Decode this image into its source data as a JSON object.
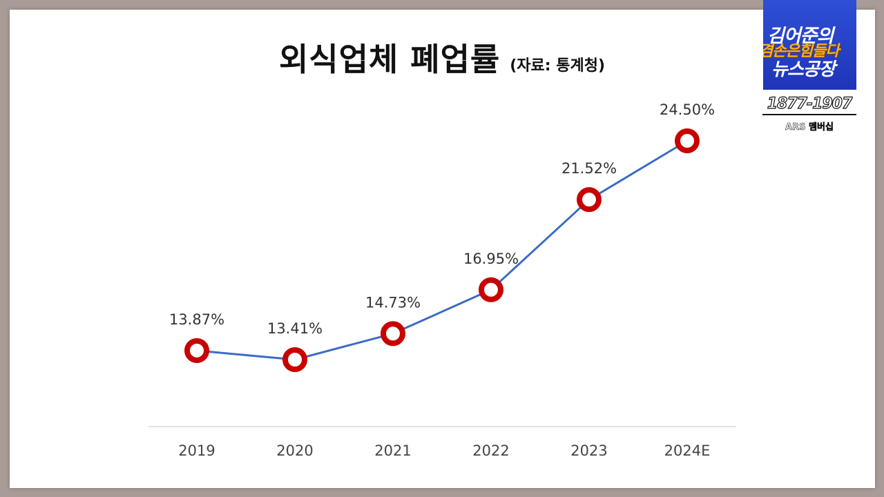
{
  "title": {
    "main": "외식업체 폐업률",
    "source": "(자료: 통계청)"
  },
  "chart_data": {
    "type": "line",
    "title": "외식업체 폐업률",
    "categories": [
      "2019",
      "2020",
      "2021",
      "2022",
      "2023",
      "2024E"
    ],
    "series": [
      {
        "values": [
          13.87,
          13.41,
          14.73,
          16.95,
          21.52,
          24.5
        ],
        "labels": [
          "13.87%",
          "13.41%",
          "14.73%",
          "16.95%",
          "21.52%",
          "24.50%"
        ]
      }
    ],
    "xlabel": "",
    "ylabel": "",
    "grid": false,
    "legend": "none",
    "colors": {
      "line": "#3a6bc6",
      "marker_ring": "#c80000",
      "marker_fill": "#ffffff",
      "axis": "#d9d9d9",
      "label_text": "#333333",
      "tick_text": "#444444"
    }
  },
  "logo": {
    "line1": "김어준의",
    "line2": "겸손은힘들다",
    "line3": "뉴스공장",
    "phone": "1877-1907",
    "ars": "ARS 멤버십",
    "bg_color": "#1e35b8",
    "accent_color": "#f6b21c"
  }
}
